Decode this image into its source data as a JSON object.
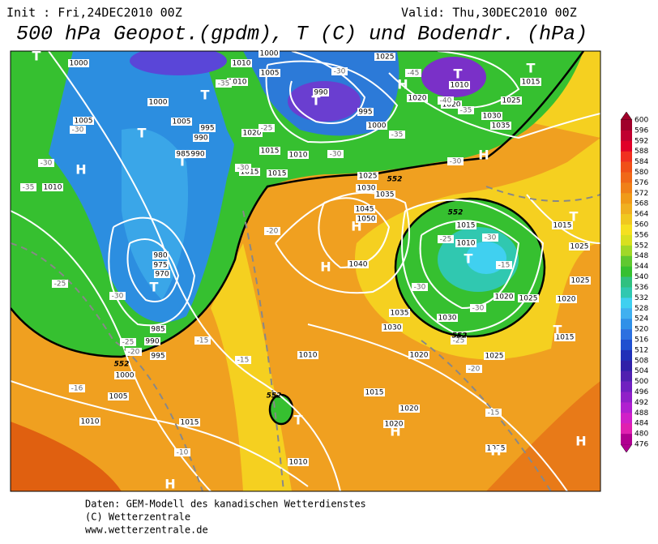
{
  "header": {
    "init": "Init : Fri,24DEC2010 00Z",
    "valid": "Valid: Thu,30DEC2010 00Z",
    "title": "500 hPa Geopot.(gpdm), T (C) und Bodendr. (hPa)"
  },
  "colorbar": {
    "labels": [
      "600",
      "596",
      "592",
      "588",
      "584",
      "580",
      "576",
      "572",
      "568",
      "564",
      "560",
      "556",
      "552",
      "548",
      "544",
      "540",
      "536",
      "532",
      "528",
      "524",
      "520",
      "516",
      "512",
      "508",
      "504",
      "500",
      "496",
      "492",
      "488",
      "484",
      "480",
      "476"
    ]
  },
  "map": {
    "pressure_labels": [
      "1000",
      "1010",
      "1000",
      "1005",
      "1010",
      "1025",
      "1010",
      "1015",
      "990",
      "995",
      "1000",
      "1020",
      "1020",
      "1025",
      "1030",
      "1035",
      "1005",
      "1000",
      "1005",
      "995",
      "990",
      "985",
      "990",
      "1020",
      "1015",
      "1010",
      "1015",
      "1015",
      "1010",
      "1025",
      "1030",
      "1035",
      "1045",
      "1050",
      "1040",
      "1015",
      "1010",
      "980",
      "975",
      "970",
      "985",
      "990",
      "995",
      "1000",
      "1005",
      "1010",
      "1015",
      "1010",
      "1020",
      "1015",
      "1020",
      "1020",
      "1025",
      "1020",
      "1025",
      "1035",
      "1030",
      "1030",
      "1015",
      "1025",
      "1025",
      "1020",
      "1015",
      "1010",
      "1025"
    ],
    "temperature_labels": [
      "-30",
      "-35",
      "-30",
      "-25",
      "-30",
      "-25",
      "-20",
      "-15",
      "-16",
      "-10",
      "-15",
      "-20",
      "-25",
      "-30",
      "-30",
      "-30",
      "-35",
      "-45",
      "-40",
      "-35",
      "-35",
      "-30",
      "-30",
      "-25",
      "-15",
      "-30",
      "-30",
      "-25",
      "-20",
      "-15"
    ],
    "centers": [
      "T",
      "H",
      "T",
      "T",
      "T",
      "H",
      "T",
      "T",
      "T",
      "H",
      "H",
      "H",
      "T",
      "T",
      "H",
      "H",
      "H",
      "H",
      "T",
      "T",
      "T"
    ],
    "contour_labels": [
      "552",
      "552",
      "552",
      "552",
      "552"
    ]
  },
  "footer": {
    "lines": [
      "Daten: GEM-Modell des kanadischen Wetterdienstes",
      "(C) Wetterzentrale",
      "www.wetterzentrale.de"
    ]
  }
}
